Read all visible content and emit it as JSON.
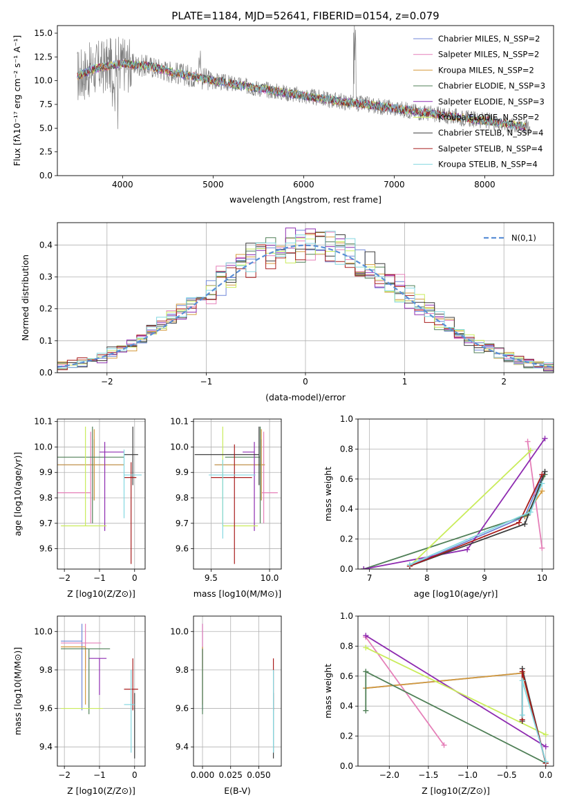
{
  "series_colors": [
    "#6f86d8",
    "#e57fb8",
    "#d49a3c",
    "#4f7f56",
    "#8e2bb0",
    "#c9ec5a",
    "#3d3d3d",
    "#a81c1c",
    "#83d7e0"
  ],
  "chart_data": [
    {
      "id": "spectrum",
      "type": "line",
      "title": "PLATE=1184, MJD=52641, FIBERID=0154, z=0.079",
      "xlabel": "wavelength [Angstrom, rest frame]",
      "ylabel": "Flux [fλ10⁻¹⁷ erg cm⁻² s⁻¹ A⁻¹]",
      "xlim": [
        3280,
        8760
      ],
      "ylim": [
        0,
        15.8
      ],
      "xticks": [
        4000,
        5000,
        6000,
        7000,
        8000
      ],
      "yticks": [
        0.0,
        2.5,
        5.0,
        7.5,
        10.0,
        12.5,
        15.0
      ],
      "grid": false,
      "legend_position": "top-right",
      "legend": [
        "Chabrier MILES, N_SSP=2",
        "Salpeter MILES, N_SSP=2",
        "Kroupa MILES, N_SSP=2",
        "Chabrier ELODIE, N_SSP=3",
        "Salpeter ELODIE, N_SSP=3",
        "Kroupa ELODIE, N_SSP=2",
        "Chabrier STELIB, N_SSP=4",
        "Salpeter STELIB, N_SSP=4",
        "Kroupa STELIB, N_SSP=4"
      ],
      "data_continuum": [
        [
          3500,
          10.5
        ],
        [
          3700,
          11.3
        ],
        [
          4000,
          11.8
        ],
        [
          4300,
          11.5
        ],
        [
          4600,
          10.8
        ],
        [
          5000,
          10.0
        ],
        [
          5500,
          9.2
        ],
        [
          6000,
          8.4
        ],
        [
          6500,
          7.7
        ],
        [
          7000,
          7.1
        ],
        [
          7500,
          6.4
        ],
        [
          8000,
          5.8
        ],
        [
          8500,
          5.1
        ]
      ]
    },
    {
      "id": "residuals",
      "type": "histogram",
      "xlabel": "(data-model)/error",
      "ylabel": "Normed distribution",
      "xlim": [
        -2.5,
        2.5
      ],
      "ylim": [
        0,
        0.47
      ],
      "xticks": [
        -2,
        -1,
        0,
        1,
        2
      ],
      "yticks": [
        0.0,
        0.1,
        0.2,
        0.3,
        0.4
      ],
      "grid": true,
      "legend_position": "top-right",
      "legend": [
        "N(0,1)"
      ]
    },
    {
      "id": "age-vs-Z",
      "type": "scatter",
      "xlabel": "Z [log10(Z/Z⊙)]",
      "ylabel": "age  [log10(age/yr)]",
      "xlim": [
        -2.2,
        0.3
      ],
      "ylim": [
        9.52,
        10.11
      ],
      "xticks": [
        -2,
        -1,
        0
      ],
      "yticks": [
        9.6,
        9.7,
        9.8,
        9.9,
        10.0,
        10.1
      ],
      "grid": true,
      "points": [
        {
          "series": 0,
          "x": -1.15,
          "xerr": [
            1.05,
            0.85
          ],
          "y": 9.93,
          "yerr": [
            0.14,
            0.1
          ]
        },
        {
          "series": 1,
          "x": -1.25,
          "xerr": [
            0.95,
            0.0
          ],
          "y": 9.82,
          "yerr": [
            0.12,
            0.24
          ]
        },
        {
          "series": 2,
          "x": -1.15,
          "xerr": [
            1.05,
            0.85
          ],
          "y": 9.93,
          "yerr": [
            0.14,
            0.14
          ]
        },
        {
          "series": 3,
          "x": -1.2,
          "xerr": [
            1.0,
            0.9
          ],
          "y": 9.96,
          "yerr": [
            0.26,
            0.12
          ]
        },
        {
          "series": 4,
          "x": -0.85,
          "xerr": [
            0.15,
            0.55
          ],
          "y": 9.98,
          "yerr": [
            0.31,
            0.04
          ]
        },
        {
          "series": 5,
          "x": -1.4,
          "xerr": [
            0.7,
            0.6
          ],
          "y": 9.69,
          "yerr": [
            0.0,
            0.39
          ]
        },
        {
          "series": 6,
          "x": -0.05,
          "xerr": [
            0.25,
            0.15
          ],
          "y": 9.97,
          "yerr": [
            0.12,
            0.11
          ]
        },
        {
          "series": 7,
          "x": -0.1,
          "xerr": [
            0.2,
            0.15
          ],
          "y": 9.88,
          "yerr": [
            0.34,
            0.06
          ]
        },
        {
          "series": 8,
          "x": -0.3,
          "xerr": [
            0.0,
            0.5
          ],
          "y": 9.89,
          "yerr": [
            0.17,
            0.1
          ]
        }
      ]
    },
    {
      "id": "age-vs-mass",
      "type": "scatter",
      "xlabel": "mass [log10(M/M⊙)]",
      "ylabel": "",
      "xlim": [
        9.35,
        10.1
      ],
      "ylim": [
        9.52,
        10.11
      ],
      "xticks": [
        9.5,
        10.0
      ],
      "yticks": [
        9.6,
        9.7,
        9.8,
        9.9,
        10.0,
        10.1
      ],
      "grid": true,
      "points": [
        {
          "series": 0,
          "x": 9.93,
          "xerr": [
            0.4,
            0.03
          ],
          "y": 9.93,
          "yerr": [
            0.14,
            0.1
          ]
        },
        {
          "series": 1,
          "x": 9.95,
          "xerr": [
            0.02,
            0.12
          ],
          "y": 9.82,
          "yerr": [
            0.12,
            0.24
          ]
        },
        {
          "series": 2,
          "x": 9.93,
          "xerr": [
            0.4,
            0.03
          ],
          "y": 9.93,
          "yerr": [
            0.14,
            0.14
          ]
        },
        {
          "series": 3,
          "x": 9.92,
          "xerr": [
            0.3,
            0.0
          ],
          "y": 9.96,
          "yerr": [
            0.26,
            0.12
          ]
        },
        {
          "series": 4,
          "x": 9.87,
          "xerr": [
            0.1,
            0.0
          ],
          "y": 9.98,
          "yerr": [
            0.31,
            0.04
          ]
        },
        {
          "series": 5,
          "x": 9.6,
          "xerr": [
            0.0,
            0.3
          ],
          "y": 9.69,
          "yerr": [
            0.0,
            0.39
          ]
        },
        {
          "series": 6,
          "x": 9.91,
          "xerr": [
            0.55,
            0.0
          ],
          "y": 9.97,
          "yerr": [
            0.12,
            0.11
          ]
        },
        {
          "series": 7,
          "x": 9.7,
          "xerr": [
            0.2,
            0.15
          ],
          "y": 9.88,
          "yerr": [
            0.34,
            0.13
          ]
        },
        {
          "series": 8,
          "x": 9.6,
          "xerr": [
            0.12,
            0.28
          ],
          "y": 9.89,
          "yerr": [
            0.25,
            0.06
          ]
        }
      ]
    },
    {
      "id": "weight-vs-age",
      "type": "line",
      "xlabel": "age  [log10(age/yr)]",
      "ylabel": "mass weight",
      "xlim": [
        6.8,
        10.2
      ],
      "ylim": [
        0,
        1.0
      ],
      "xticks": [
        7,
        8,
        9,
        10
      ],
      "yticks": [
        0.0,
        0.2,
        0.4,
        0.6,
        0.8,
        1.0
      ],
      "grid": true,
      "series": [
        {
          "series": 0,
          "x": [
            7.7,
            9.7,
            10.0
          ],
          "y": [
            0.02,
            0.35,
            0.62
          ]
        },
        {
          "series": 1,
          "x": [
            9.75,
            10.0
          ],
          "y": [
            0.85,
            0.14
          ]
        },
        {
          "series": 2,
          "x": [
            9.7,
            10.0
          ],
          "y": [
            0.35,
            0.52
          ]
        },
        {
          "series": 3,
          "x": [
            6.9,
            9.75,
            10.05
          ],
          "y": [
            0.0,
            0.36,
            0.63
          ]
        },
        {
          "series": 4,
          "x": [
            6.9,
            8.7,
            10.05
          ],
          "y": [
            0.0,
            0.13,
            0.87
          ]
        },
        {
          "series": 5,
          "x": [
            7.7,
            9.8
          ],
          "y": [
            0.02,
            0.79
          ]
        },
        {
          "series": 6,
          "x": [
            7.7,
            9.7,
            10.05
          ],
          "y": [
            0.02,
            0.3,
            0.65
          ]
        },
        {
          "series": 7,
          "x": [
            7.7,
            9.6,
            10.0
          ],
          "y": [
            0.02,
            0.31,
            0.63
          ]
        },
        {
          "series": 8,
          "x": [
            7.7,
            9.8,
            10.0
          ],
          "y": [
            0.03,
            0.38,
            0.57
          ]
        }
      ]
    },
    {
      "id": "mass-vs-Z",
      "type": "scatter",
      "xlabel": "Z [log10(Z/Z⊙)]",
      "ylabel": "mass [log10(M/M⊙)]",
      "xlim": [
        -2.2,
        0.3
      ],
      "ylim": [
        9.3,
        10.08
      ],
      "xticks": [
        -2,
        -1,
        0
      ],
      "yticks": [
        9.4,
        9.6,
        9.8,
        10.0
      ],
      "grid": true,
      "points": [
        {
          "series": 0,
          "x": -1.5,
          "xerr": [
            0.6,
            0.0
          ],
          "y": 9.95,
          "yerr": [
            0.36,
            0.09
          ]
        },
        {
          "series": 1,
          "x": -1.4,
          "xerr": [
            0.7,
            0.45
          ],
          "y": 9.94,
          "yerr": [
            0.13,
            0.1
          ]
        },
        {
          "series": 2,
          "x": -1.4,
          "xerr": [
            0.7,
            0.0
          ],
          "y": 9.92,
          "yerr": [
            0.3,
            0.0
          ]
        },
        {
          "series": 3,
          "x": -1.3,
          "xerr": [
            0.8,
            0.6
          ],
          "y": 9.91,
          "yerr": [
            0.34,
            0.0
          ]
        },
        {
          "series": 4,
          "x": -1.0,
          "xerr": [
            0.3,
            0.2
          ],
          "y": 9.86,
          "yerr": [
            0.19,
            0.0
          ]
        },
        {
          "series": 5,
          "x": -1.5,
          "xerr": [
            0.6,
            0.6
          ],
          "y": 9.6,
          "yerr": [
            0.0,
            0.0
          ]
        },
        {
          "series": 6,
          "x": 0.0,
          "xerr": [
            0.0,
            0.0
          ],
          "y": 9.68,
          "yerr": [
            0.34,
            0.0
          ]
        },
        {
          "series": 7,
          "x": -0.05,
          "xerr": [
            0.25,
            0.15
          ],
          "y": 9.7,
          "yerr": [
            0.11,
            0.16
          ]
        },
        {
          "series": 8,
          "x": -0.1,
          "xerr": [
            0.2,
            0.1
          ],
          "y": 9.62,
          "yerr": [
            0.25,
            0.18
          ]
        }
      ]
    },
    {
      "id": "mass-vs-ebv",
      "type": "scatter",
      "xlabel": "E(B-V)",
      "ylabel": "",
      "xlim": [
        -0.008,
        0.07
      ],
      "ylim": [
        9.3,
        10.08
      ],
      "xticks": [
        0.0,
        0.025,
        0.05
      ],
      "yticks": [
        9.4,
        9.6,
        9.8,
        10.0
      ],
      "grid": true,
      "points": [
        {
          "series": 0,
          "x": 0.0,
          "y": 9.95,
          "yerr": [
            0.36,
            0.09
          ]
        },
        {
          "series": 1,
          "x": 0.0,
          "y": 9.94,
          "yerr": [
            0.13,
            0.1
          ]
        },
        {
          "series": 2,
          "x": 0.0,
          "y": 9.92,
          "yerr": [
            0.3,
            0.0
          ]
        },
        {
          "series": 5,
          "x": 0.0,
          "y": 9.6,
          "yerr": [
            0.0,
            0.0
          ]
        },
        {
          "series": 3,
          "x": 0.0,
          "y": 9.91,
          "yerr": [
            0.34,
            0.0
          ]
        },
        {
          "series": 6,
          "x": 0.063,
          "y": 9.68,
          "yerr": [
            0.34,
            0.0
          ]
        },
        {
          "series": 7,
          "x": 0.063,
          "y": 9.7,
          "yerr": [
            0.11,
            0.16
          ]
        },
        {
          "series": 8,
          "x": 0.063,
          "y": 9.62,
          "yerr": [
            0.25,
            0.18
          ]
        }
      ]
    },
    {
      "id": "weight-vs-Z",
      "type": "line",
      "xlabel": "Z [log10(Z/Z⊙)]",
      "ylabel": "mass weight",
      "xlim": [
        -2.4,
        0.1
      ],
      "ylim": [
        0,
        1.0
      ],
      "xticks": [
        -2.0,
        -1.5,
        -1.0,
        -0.5,
        0.0
      ],
      "yticks": [
        0.0,
        0.2,
        0.4,
        0.6,
        0.8,
        1.0
      ],
      "grid": true,
      "series": [
        {
          "series": 0,
          "x": [
            -2.3,
            -0.3,
            0.0
          ],
          "y": [
            0.52,
            0.62,
            0.02
          ]
        },
        {
          "series": 1,
          "x": [
            -2.3,
            -1.3
          ],
          "y": [
            0.86,
            0.14
          ]
        },
        {
          "series": 2,
          "x": [
            -2.3,
            -0.3,
            0.0
          ],
          "y": [
            0.52,
            0.62,
            0.02
          ]
        },
        {
          "series": 3,
          "x": [
            -2.3,
            -2.3,
            0.0
          ],
          "y": [
            0.37,
            0.63,
            0.02
          ]
        },
        {
          "series": 4,
          "x": [
            -2.3,
            0.0
          ],
          "y": [
            0.87,
            0.13
          ]
        },
        {
          "series": 5,
          "x": [
            -2.3,
            0.0
          ],
          "y": [
            0.79,
            0.21
          ]
        },
        {
          "series": 6,
          "x": [
            -0.3,
            -0.3,
            0.0
          ],
          "y": [
            0.3,
            0.65,
            0.02
          ]
        },
        {
          "series": 7,
          "x": [
            -0.3,
            -0.3,
            0.0
          ],
          "y": [
            0.31,
            0.63,
            0.02
          ]
        },
        {
          "series": 8,
          "x": [
            -0.3,
            -0.3,
            0.0
          ],
          "y": [
            0.34,
            0.57,
            0.03
          ]
        }
      ]
    }
  ]
}
